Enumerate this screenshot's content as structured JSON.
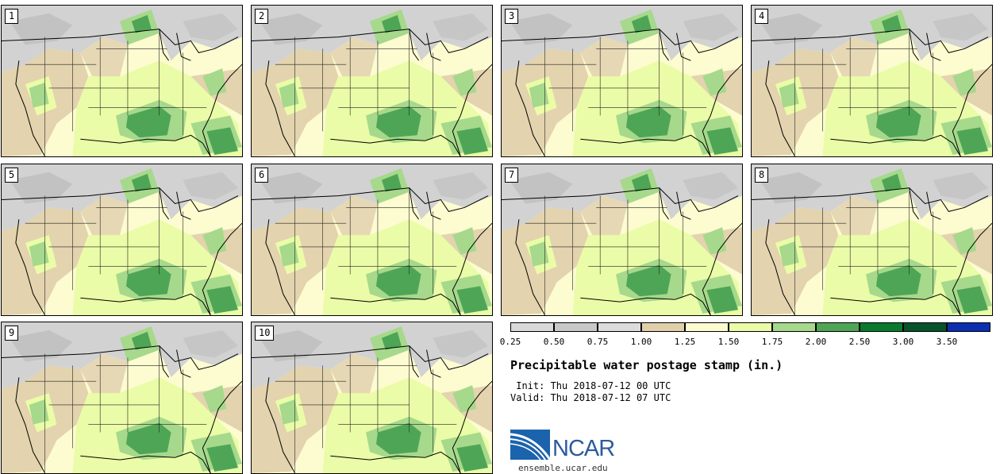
{
  "figure": {
    "title": "Precipitable water postage stamp (in.)",
    "init_line": " Init: Thu 2018-07-12 00 UTC",
    "valid_line": "Valid: Thu 2018-07-12 07 UTC"
  },
  "members": [
    "1",
    "2",
    "3",
    "4",
    "5",
    "6",
    "7",
    "8",
    "9",
    "10"
  ],
  "colorbar": {
    "colors": [
      "#d9d9d9",
      "#c8c8c8",
      "#dcdcdc",
      "#e0cfaa",
      "#fdfbd0",
      "#eafca7",
      "#a6d98b",
      "#4fa556",
      "#0b7a2e",
      "#07532a",
      "#0b2fb0"
    ],
    "ticks": [
      "0.25",
      "0.50",
      "0.75",
      "1.00",
      "1.25",
      "1.50",
      "1.75",
      "2.00",
      "2.50",
      "3.00",
      "3.50"
    ]
  },
  "logo": {
    "text": "NCAR",
    "url": "ensemble.ucar.edu"
  }
}
